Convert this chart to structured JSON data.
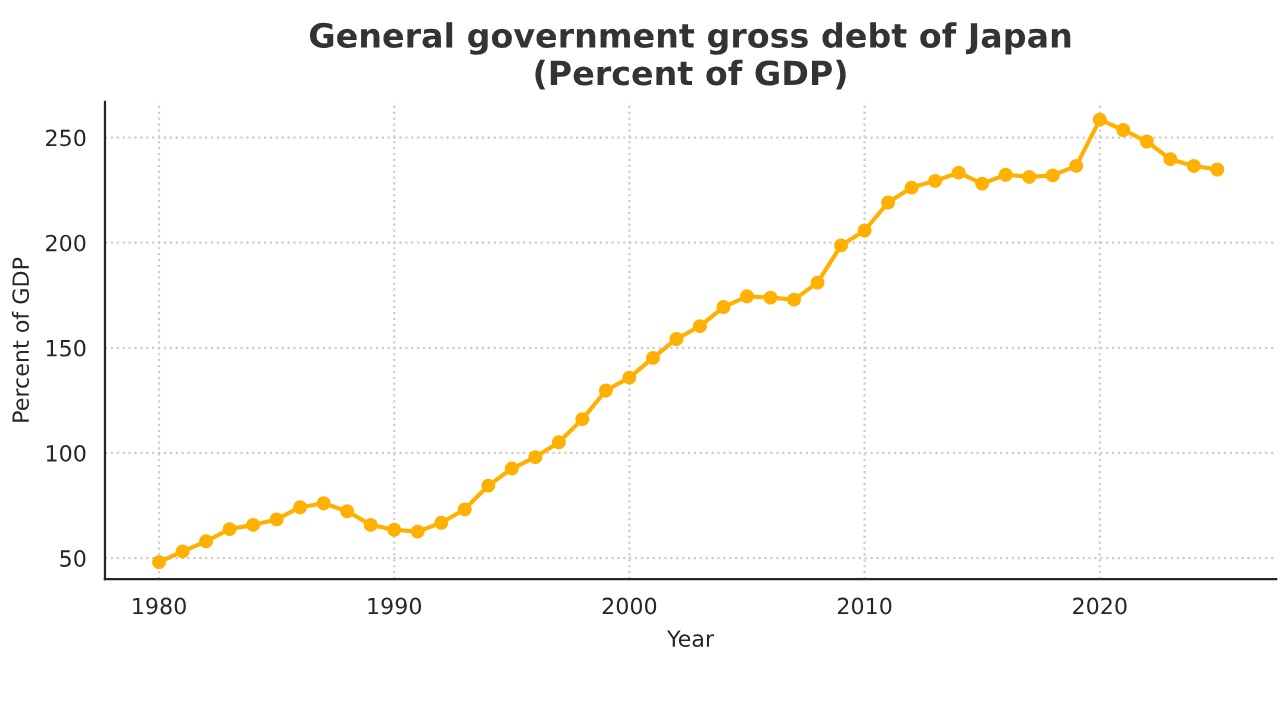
{
  "chart_data": {
    "type": "line",
    "title": "General government gross debt of Japan\n(Percent of GDP)",
    "xlabel": "Year",
    "ylabel": "Percent of GDP",
    "x": [
      1980,
      1981,
      1982,
      1983,
      1984,
      1985,
      1986,
      1987,
      1988,
      1989,
      1990,
      1991,
      1992,
      1993,
      1994,
      1995,
      1996,
      1997,
      1998,
      1999,
      2000,
      2001,
      2002,
      2003,
      2004,
      2005,
      2006,
      2007,
      2008,
      2009,
      2010,
      2011,
      2012,
      2013,
      2014,
      2015,
      2016,
      2017,
      2018,
      2019,
      2020,
      2021,
      2022,
      2023,
      2024,
      2025
    ],
    "series": [
      {
        "color": "#ffb000",
        "values": [
          48.1,
          53.2,
          58,
          63.8,
          65.8,
          68.4,
          74.2,
          76.1,
          72.3,
          65.8,
          63.5,
          62.6,
          66.8,
          73.2,
          84.5,
          92.6,
          98,
          105.1,
          116.1,
          129.7,
          135.8,
          145.2,
          154.2,
          160.3,
          169.4,
          174.5,
          173.9,
          172.9,
          181,
          198.7,
          205.8,
          219.1,
          226.2,
          229.4,
          233.3,
          228.1,
          232.3,
          231.3,
          232,
          236.5,
          258.5,
          253.6,
          248.1,
          239.7,
          236.5,
          234.8
        ]
      }
    ],
    "xlim": [
      1977.7,
      2027.5
    ],
    "ylim": [
      40,
      267
    ],
    "xticks": [
      1980,
      1990,
      2000,
      2010,
      2020
    ],
    "yticks": [
      50,
      100,
      150,
      200,
      250
    ],
    "grid": true,
    "marker": "circle",
    "line_style": "solid"
  }
}
